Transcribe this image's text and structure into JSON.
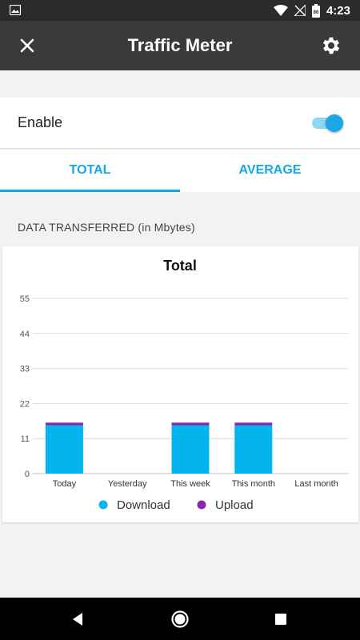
{
  "status_bar": {
    "time": "4:23",
    "icons": [
      "image-icon",
      "wifi-icon",
      "no-signal-icon",
      "battery-icon"
    ],
    "battery_label": "86"
  },
  "app_bar": {
    "title": "Traffic Meter",
    "left_icon": "close-icon",
    "right_icon": "gear-icon"
  },
  "enable": {
    "label": "Enable",
    "enabled": true
  },
  "tabs": [
    {
      "label": "TOTAL",
      "active": true
    },
    {
      "label": "AVERAGE",
      "active": false
    }
  ],
  "section_header": "DATA TRANSFERRED (in Mbytes)",
  "colors": {
    "accent": "#13a8e6",
    "download": "#03b4ef",
    "upload": "#8e24aa",
    "app_bar": "#3a3a3a"
  },
  "chart_data": {
    "type": "bar",
    "stacked": true,
    "title": "Total",
    "categories": [
      "Today",
      "Yesterday",
      "This week",
      "This month",
      "Last month"
    ],
    "series": [
      {
        "name": "Download",
        "values": [
          15.2,
          0,
          15.2,
          15.2,
          0
        ]
      },
      {
        "name": "Upload",
        "values": [
          0.8,
          0,
          0.8,
          0.8,
          0
        ]
      }
    ],
    "ylim": [
      0,
      55
    ],
    "yticks": [
      "0",
      "11",
      "22",
      "33",
      "44",
      "55"
    ],
    "grid": true,
    "legend_position": "bottom"
  },
  "nav_bar": {
    "icons": [
      "back-icon",
      "home-icon",
      "recents-icon"
    ]
  }
}
